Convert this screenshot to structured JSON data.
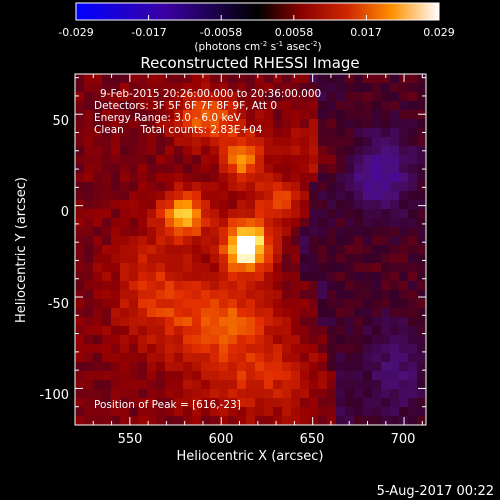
{
  "chart_data": {
    "type": "heatmap",
    "title": "Reconstructed RHESSI Image",
    "xlabel": "Heliocentric X (arcsec)",
    "ylabel": "Heliocentric Y (arcsec)",
    "xlim": [
      520,
      712
    ],
    "ylim": [
      -120,
      72
    ],
    "x_ticks": [
      550,
      600,
      650,
      700
    ],
    "y_ticks": [
      50,
      0,
      -50,
      -100
    ],
    "colorbar": {
      "ticks": [
        "-0.029",
        "-0.017",
        "-0.0058",
        "0.0058",
        "0.017",
        "0.029"
      ],
      "range": [
        -0.029,
        0.029
      ],
      "unit_prefix": "(photons cm",
      "unit_exp1": "-2",
      "unit_mid1": " s",
      "unit_exp2": "-1",
      "unit_mid2": " asec",
      "unit_exp3": "-2",
      "unit_suffix": ")"
    },
    "annotations": {
      "time_range": "9-Feb-2015 20:26:00.000 to 20:36:00.000",
      "detectors": "Detectors: 3F 5F 6F 7F 8F 9F, Att 0",
      "energy": "Energy Range: 3.0 - 6.0 keV",
      "clean": "Clean     Total counts: 2.83E+04",
      "peak": "Position of Peak = [616,-23]"
    },
    "peak": [
      616,
      -23
    ],
    "footer_date": "5-Aug-2017 00:22",
    "sources": [
      {
        "x": 614,
        "y": -22,
        "amp": 0.028,
        "sx": 9,
        "sy": 10
      },
      {
        "x": 580,
        "y": -5,
        "amp": 0.018,
        "sx": 9,
        "sy": 9
      },
      {
        "x": 612,
        "y": 25,
        "amp": 0.015,
        "sx": 8,
        "sy": 10
      },
      {
        "x": 592,
        "y": 48,
        "amp": 0.013,
        "sx": 13,
        "sy": 10
      },
      {
        "x": 632,
        "y": 2,
        "amp": 0.011,
        "sx": 9,
        "sy": 8
      },
      {
        "x": 600,
        "y": -62,
        "amp": 0.012,
        "sx": 20,
        "sy": 15
      },
      {
        "x": 562,
        "y": -45,
        "amp": 0.008,
        "sx": 15,
        "sy": 22
      },
      {
        "x": 620,
        "y": -95,
        "amp": 0.008,
        "sx": 25,
        "sy": 15
      },
      {
        "x": 655,
        "y": 30,
        "amp": 0.007,
        "sx": 14,
        "sy": 12
      },
      {
        "x": 686,
        "y": 18,
        "amp": -0.012,
        "sx": 14,
        "sy": 16
      },
      {
        "x": 695,
        "y": -90,
        "amp": -0.007,
        "sx": 14,
        "sy": 20
      }
    ]
  }
}
